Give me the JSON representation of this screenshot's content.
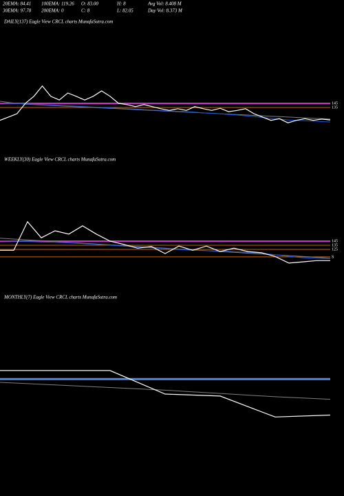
{
  "header": {
    "items": [
      [
        "20EMA: 84.41",
        "100EMA: 119.26",
        "O: 83.00",
        "H: 8",
        "Avg Vol: 8.408 M"
      ],
      [
        "30EMA: 97.78",
        "200EMA: 0",
        "C: 8",
        "L: 82.05",
        "Day Vol: 8.373 M"
      ]
    ]
  },
  "chart_data": [
    {
      "type": "line",
      "title": "DAILY(137) Eagle   View  CRCL  charts MunafaSutra.com",
      "ylim": [
        12,
        328
      ],
      "series": [
        {
          "color": "#808080",
          "values": [
            150,
            147,
            145,
            143,
            142,
            141,
            140,
            139,
            138,
            137,
            136,
            135,
            134,
            133,
            132,
            131,
            130,
            129,
            128,
            127,
            126,
            125,
            124,
            123,
            122,
            121,
            120,
            119,
            118,
            117,
            116,
            115,
            114,
            113,
            112,
            111,
            110,
            109,
            108,
            107
          ]
        },
        {
          "color": "#2255dd",
          "values": [
            146,
            145,
            145,
            144,
            143,
            142,
            141,
            140,
            139,
            138,
            137,
            136,
            135,
            134,
            133,
            132,
            131,
            130,
            129,
            128,
            127,
            126,
            125,
            124,
            122,
            121,
            120,
            118,
            117,
            115,
            113,
            111,
            109,
            107,
            105,
            104,
            103,
            102,
            101,
            100
          ]
        },
        {
          "color": "#ffffff",
          "values": [
            104,
            112,
            120,
            145,
            162,
            187,
            162,
            153,
            170,
            162,
            153,
            162,
            175,
            162,
            145,
            142,
            137,
            142,
            137,
            132,
            128,
            132,
            128,
            137,
            132,
            128,
            133,
            125,
            128,
            132,
            120,
            112,
            104,
            108,
            98,
            104,
            108,
            104,
            107,
            105
          ]
        }
      ],
      "hlines": [
        {
          "value": 145,
          "color": "#cc33cc",
          "label": "145"
        },
        {
          "value": 135,
          "color": "#cc6600",
          "label": "135"
        }
      ]
    },
    {
      "type": "line",
      "title": "WEEKLY(30) Eagle   View  CRCL  charts MunafaSutra.com",
      "ylim": [
        12,
        328
      ],
      "series": [
        {
          "color": "#808080",
          "values": [
            152,
            150,
            148,
            146,
            144,
            142,
            140,
            138,
            136,
            134,
            132,
            130,
            128,
            126,
            124,
            122,
            120,
            118,
            116,
            114,
            112,
            110,
            108,
            106,
            104
          ]
        },
        {
          "color": "#2255dd",
          "values": [
            146,
            145,
            144,
            143,
            142,
            141,
            139,
            137,
            135,
            133,
            131,
            129,
            127,
            125,
            123,
            122,
            121,
            120,
            118,
            116,
            112,
            108,
            105,
            104,
            103
          ]
        },
        {
          "color": "#ffffff",
          "values": [
            123,
            123,
            192,
            153,
            170,
            162,
            182,
            162,
            145,
            137,
            128,
            132,
            115,
            133,
            123,
            133,
            120,
            128,
            120,
            117,
            108,
            92,
            95,
            98,
            98
          ]
        }
      ],
      "hlines": [
        {
          "value": 145,
          "color": "#cc33cc",
          "label": "145"
        },
        {
          "value": 135,
          "color": "#cc6600",
          "label": "135"
        },
        {
          "value": 125,
          "color": "#cc6600",
          "label": "125"
        },
        {
          "value": 107,
          "color": "#cc6600",
          "label": "S"
        }
      ]
    },
    {
      "type": "line",
      "title": "MONTHLY(7) Eagle   View  CRCL  charts MunafaSutra.com",
      "ylim": [
        0,
        200
      ],
      "series": [
        {
          "color": "#808080",
          "values": [
            79,
            75,
            71,
            67,
            62,
            57,
            53
          ]
        },
        {
          "color": "#ffffff",
          "values": [
            97,
            97,
            97,
            61,
            58,
            26,
            29
          ]
        }
      ],
      "hlines": [
        {
          "value": 84,
          "color": "#5588dd"
        }
      ]
    }
  ]
}
